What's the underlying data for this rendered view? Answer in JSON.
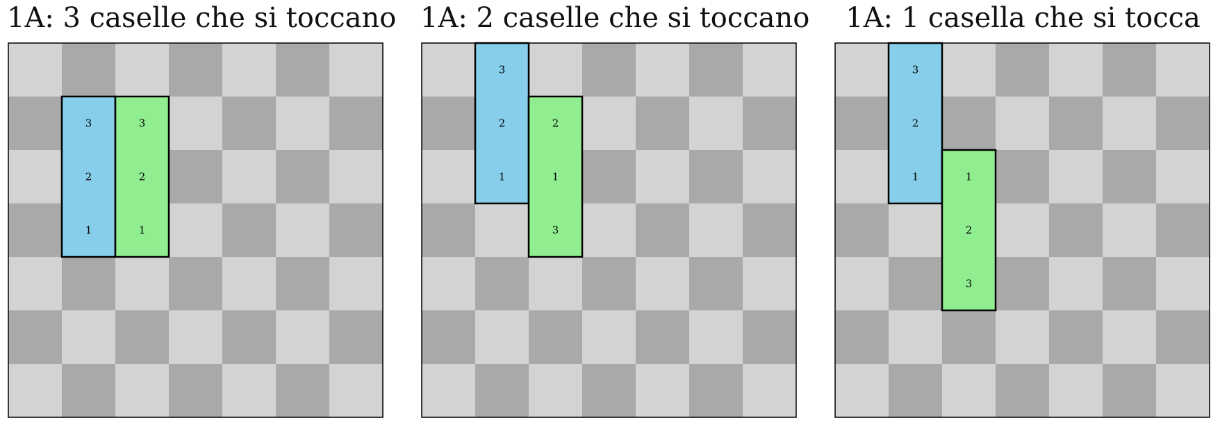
{
  "colors": {
    "light_square": "#d3d3d3",
    "dark_square": "#a9a9a9",
    "blue_piece": "#87ceeb",
    "green_piece": "#90ee90",
    "border": "#000000"
  },
  "board_size": 7,
  "panels": [
    {
      "title": "1A: 3 caselle che si toccano",
      "pieces": [
        {
          "color": "blue",
          "cells": [
            {
              "row": 4,
              "col": 2,
              "label": "1"
            },
            {
              "row": 5,
              "col": 2,
              "label": "2"
            },
            {
              "row": 6,
              "col": 2,
              "label": "3"
            }
          ]
        },
        {
          "color": "green",
          "cells": [
            {
              "row": 4,
              "col": 3,
              "label": "1"
            },
            {
              "row": 5,
              "col": 3,
              "label": "2"
            },
            {
              "row": 6,
              "col": 3,
              "label": "3"
            }
          ]
        }
      ]
    },
    {
      "title": "1A: 2 caselle che si toccano",
      "pieces": [
        {
          "color": "blue",
          "cells": [
            {
              "row": 5,
              "col": 2,
              "label": "1"
            },
            {
              "row": 6,
              "col": 2,
              "label": "2"
            },
            {
              "row": 7,
              "col": 2,
              "label": "3"
            }
          ]
        },
        {
          "color": "green",
          "cells": [
            {
              "row": 4,
              "col": 3,
              "label": "3"
            },
            {
              "row": 5,
              "col": 3,
              "label": "1"
            },
            {
              "row": 6,
              "col": 3,
              "label": "2"
            }
          ]
        }
      ]
    },
    {
      "title": "1A: 1 casella che si tocca",
      "pieces": [
        {
          "color": "blue",
          "cells": [
            {
              "row": 5,
              "col": 2,
              "label": "1"
            },
            {
              "row": 6,
              "col": 2,
              "label": "2"
            },
            {
              "row": 7,
              "col": 2,
              "label": "3"
            }
          ]
        },
        {
          "color": "green",
          "cells": [
            {
              "row": 5,
              "col": 3,
              "label": "1"
            },
            {
              "row": 4,
              "col": 3,
              "label": "2"
            },
            {
              "row": 3,
              "col": 3,
              "label": "3"
            }
          ]
        }
      ]
    }
  ]
}
